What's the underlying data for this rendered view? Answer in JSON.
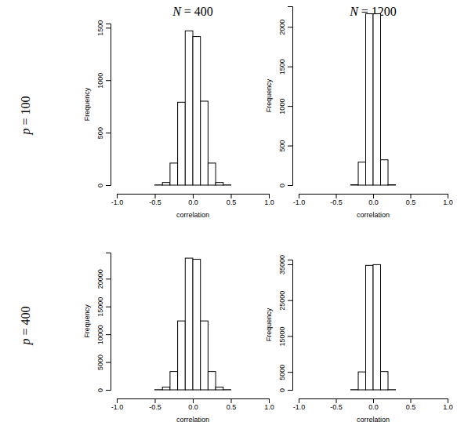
{
  "columns": [
    "N = 400",
    "N = 1200"
  ],
  "rows": [
    "p = 100",
    "p = 400"
  ],
  "chart_data": [
    {
      "type": "histogram",
      "x_label": "correlation",
      "y_label": "Frequency",
      "color": "#ffffff",
      "bins": [
        -1,
        -0.9,
        -0.8,
        -0.7,
        -0.6,
        -0.5,
        -0.4,
        -0.3,
        -0.2,
        -0.1,
        0,
        0.1,
        0.2,
        0.3,
        0.4,
        0.5,
        0.6,
        0.7,
        0.8,
        0.9,
        1
      ],
      "values": [
        0,
        0,
        0,
        0,
        0,
        2,
        25,
        210,
        790,
        1470,
        1416,
        800,
        210,
        25,
        2,
        0,
        0,
        0,
        0,
        0
      ],
      "xlim": [
        -1,
        1
      ],
      "xticks": [
        {
          "value": -1,
          "label": "-1.0"
        },
        -0.5,
        {
          "value": 0,
          "label": "0.0"
        },
        0.5,
        {
          "value": 1,
          "label": "1.0"
        }
      ],
      "ylim": [
        0,
        1540
      ],
      "yticks": [
        0,
        500,
        1000,
        1500
      ]
    },
    {
      "type": "histogram",
      "x_label": "correlation",
      "y_label": "Frequency",
      "color": "#ffffff",
      "bins": [
        -1,
        -0.9,
        -0.8,
        -0.7,
        -0.6,
        -0.5,
        -0.4,
        -0.3,
        -0.2,
        -0.1,
        0,
        0.1,
        0.2,
        0.3,
        0.4,
        0.5,
        0.6,
        0.7,
        0.8,
        0.9,
        1
      ],
      "values": [
        0,
        0,
        0,
        0,
        0,
        0,
        0,
        5,
        290,
        2165,
        2165,
        320,
        5,
        0,
        0,
        0,
        0,
        0,
        0,
        0
      ],
      "xlim": [
        -1,
        1
      ],
      "xticks": [
        {
          "value": -1,
          "label": "-1.0"
        },
        -0.5,
        {
          "value": 0,
          "label": "0.0"
        },
        0.5,
        {
          "value": 1,
          "label": "1.0"
        }
      ],
      "ylim": [
        0,
        2260
      ],
      "yticks": [
        0,
        500,
        1000,
        1500,
        2000
      ]
    },
    {
      "type": "histogram",
      "x_label": "correlation",
      "y_label": "Frequency",
      "color": "#ffffff",
      "bins": [
        -1,
        -0.9,
        -0.8,
        -0.7,
        -0.6,
        -0.5,
        -0.4,
        -0.3,
        -0.2,
        -0.1,
        0,
        0.1,
        0.2,
        0.3,
        0.4,
        0.5,
        0.6,
        0.7,
        0.8,
        0.9,
        1
      ],
      "values": [
        0,
        0,
        0,
        0,
        0,
        30,
        500,
        3300,
        12400,
        23700,
        23500,
        12400,
        3300,
        500,
        30,
        0,
        0,
        0,
        0,
        0
      ],
      "xlim": [
        -1,
        1
      ],
      "xticks": [
        {
          "value": -1,
          "label": "-1.0"
        },
        -0.5,
        {
          "value": 0,
          "label": "0.0"
        },
        0.5,
        {
          "value": 1,
          "label": "1.0"
        }
      ],
      "ylim": [
        0,
        24700
      ],
      "yticks": [
        0,
        5000,
        10000,
        15000,
        20000
      ]
    },
    {
      "type": "histogram",
      "x_label": "correlation",
      "y_label": "Frequency",
      "color": "#ffffff",
      "bins": [
        -1,
        -0.9,
        -0.8,
        -0.7,
        -0.6,
        -0.5,
        -0.4,
        -0.3,
        -0.2,
        -0.1,
        0,
        0.1,
        0.2,
        0.3,
        0.4,
        0.5,
        0.6,
        0.7,
        0.8,
        0.9,
        1
      ],
      "values": [
        0,
        0,
        0,
        0,
        0,
        0,
        0,
        50,
        5000,
        34700,
        34900,
        5100,
        50,
        0,
        0,
        0,
        0,
        0,
        0,
        0
      ],
      "xlim": [
        -1,
        1
      ],
      "xticks": [
        {
          "value": -1,
          "label": "-1.0"
        },
        -0.5,
        {
          "value": 0,
          "label": "0.0"
        },
        0.5,
        {
          "value": 1,
          "label": "1.0"
        }
      ],
      "ylim": [
        0,
        36300
      ],
      "yticks": [
        0,
        5000,
        15000,
        25000,
        35000
      ]
    }
  ]
}
